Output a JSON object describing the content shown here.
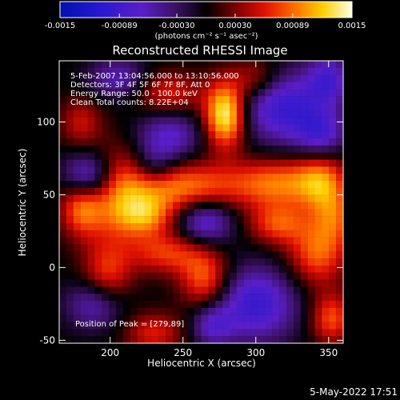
{
  "chart_data": {
    "type": "heatmap",
    "title": "Reconstructed RHESSI Image",
    "xlabel": "Heliocentric X (arcsec)",
    "ylabel": "Heliocentric Y (arcsec)",
    "xlim": [
      165,
      360
    ],
    "ylim": [
      -52,
      142
    ],
    "x_ticks": [
      200,
      250,
      300,
      350
    ],
    "y_ticks": [
      -50,
      0,
      50,
      100
    ],
    "colorbar": {
      "min": -0.0015,
      "max": 0.0015,
      "unit_label": "(photons cm⁻² s⁻¹ asec⁻²)",
      "tick_values": [
        -0.0015,
        -0.00089,
        -0.0003,
        0.0003,
        0.00089,
        0.0015
      ],
      "tick_labels": [
        "-0.0015",
        "-0.00089",
        "-0.00030",
        "0.00030",
        "0.00089",
        "0.0015"
      ]
    },
    "annotations": [
      "5-Feb-2007 13:04:56.000 to 13:10:56.000",
      "Detectors: 3F 4F 5F 6F 7F 8F, Att 0",
      "Energy Range: 50.0 - 100.0 keV",
      "Clean    Total counts: 8.22E+04"
    ],
    "peak_label": "Position of Peak = [279,89]",
    "peak": [
      279,
      89
    ],
    "grid": false,
    "grid_nx": 40,
    "grid_ny": 40,
    "grid_step_arcsec": 4.9,
    "blobs": [
      {
        "x": 279,
        "y": 105,
        "amp": 0.0015,
        "sx": 10,
        "sy": 16
      },
      {
        "x": 252,
        "y": 55,
        "amp": 0.00095,
        "sx": 26,
        "sy": 12
      },
      {
        "x": 205,
        "y": 50,
        "amp": 0.0009,
        "sx": 18,
        "sy": 22
      },
      {
        "x": 180,
        "y": 42,
        "amp": 0.0008,
        "sx": 10,
        "sy": 14
      },
      {
        "x": 315,
        "y": 58,
        "amp": 0.0009,
        "sx": 22,
        "sy": 12
      },
      {
        "x": 345,
        "y": 60,
        "amp": 0.0008,
        "sx": 12,
        "sy": 16
      },
      {
        "x": 342,
        "y": 10,
        "amp": 0.00085,
        "sx": 14,
        "sy": 16
      },
      {
        "x": 315,
        "y": 30,
        "amp": 0.00075,
        "sx": 14,
        "sy": 10
      },
      {
        "x": 265,
        "y": -8,
        "amp": 0.00085,
        "sx": 12,
        "sy": 14
      },
      {
        "x": 240,
        "y": 10,
        "amp": 0.0007,
        "sx": 18,
        "sy": 10
      },
      {
        "x": 198,
        "y": -5,
        "amp": 0.0007,
        "sx": 12,
        "sy": 16
      },
      {
        "x": 225,
        "y": 35,
        "amp": 0.0007,
        "sx": 14,
        "sy": 10
      },
      {
        "x": 240,
        "y": 120,
        "amp": 0.0006,
        "sx": 16,
        "sy": 10
      },
      {
        "x": 355,
        "y": 35,
        "amp": 0.0006,
        "sx": 10,
        "sy": 14
      },
      {
        "x": 352,
        "y": -35,
        "amp": 0.0008,
        "sx": 10,
        "sy": 12
      },
      {
        "x": 230,
        "y": -45,
        "amp": 0.0006,
        "sx": 14,
        "sy": 10
      },
      {
        "x": 180,
        "y": 100,
        "amp": 0.0005,
        "sx": 10,
        "sy": 12
      },
      {
        "x": 300,
        "y": 130,
        "amp": 0.00055,
        "sx": 12,
        "sy": 10
      },
      {
        "x": 240,
        "y": 90,
        "amp": -0.0007,
        "sx": 16,
        "sy": 12
      },
      {
        "x": 320,
        "y": 110,
        "amp": -0.00095,
        "sx": 22,
        "sy": 18
      },
      {
        "x": 185,
        "y": 62,
        "amp": -0.0011,
        "sx": 12,
        "sy": 12
      },
      {
        "x": 265,
        "y": 32,
        "amp": -0.0008,
        "sx": 14,
        "sy": 12
      },
      {
        "x": 300,
        "y": -25,
        "amp": -0.00095,
        "sx": 20,
        "sy": 18
      },
      {
        "x": 190,
        "y": -25,
        "amp": -0.0007,
        "sx": 14,
        "sy": 12
      },
      {
        "x": 350,
        "y": 130,
        "amp": -0.0007,
        "sx": 10,
        "sy": 12
      },
      {
        "x": 345,
        "y": 90,
        "amp": -0.0007,
        "sx": 12,
        "sy": 12
      },
      {
        "x": 205,
        "y": 130,
        "amp": -0.0006,
        "sx": 14,
        "sy": 10
      },
      {
        "x": 270,
        "y": -40,
        "amp": -0.0006,
        "sx": 10,
        "sy": 10
      },
      {
        "x": 230,
        "y": 70,
        "amp": -0.0005,
        "sx": 10,
        "sy": 10
      }
    ]
  },
  "footer": {
    "timestamp": "5-May-2022 17:51"
  }
}
